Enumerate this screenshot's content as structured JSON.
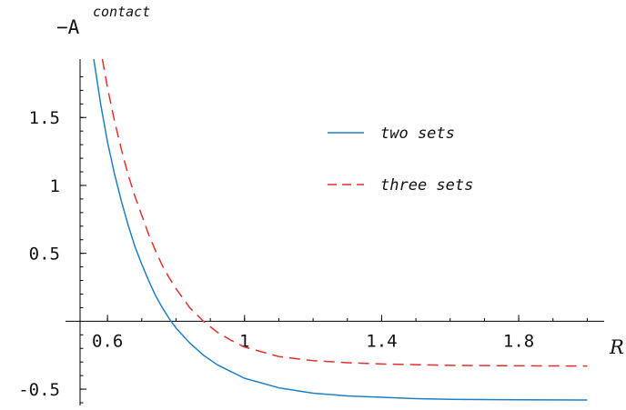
{
  "chart_data": {
    "type": "line",
    "ylabel": "−A",
    "ylabel_superscript": "contact",
    "xlabel": "R",
    "xlim": [
      0.52,
      2.06
    ],
    "ylim": [
      -0.62,
      1.93
    ],
    "x_ticks": [
      0.6,
      1.0,
      1.4,
      1.8
    ],
    "x_tick_labels": [
      "0.6",
      "1",
      "1.4",
      "1.8"
    ],
    "y_ticks": [
      -0.5,
      0.5,
      1.0,
      1.5
    ],
    "y_tick_labels": [
      "-0.5",
      "0.5",
      "1",
      "1.5"
    ],
    "grid": false,
    "legend_position": "upper-right",
    "series": [
      {
        "name": "two sets",
        "color": "#1f7fc4",
        "dash": "solid",
        "x": [
          0.56,
          0.58,
          0.6,
          0.62,
          0.64,
          0.66,
          0.68,
          0.7,
          0.72,
          0.74,
          0.76,
          0.78,
          0.8,
          0.84,
          0.88,
          0.92,
          0.96,
          1.0,
          1.1,
          1.2,
          1.3,
          1.4,
          1.5,
          1.6,
          1.8,
          2.0
        ],
        "values": [
          1.93,
          1.6,
          1.32,
          1.09,
          0.89,
          0.71,
          0.55,
          0.42,
          0.3,
          0.19,
          0.1,
          0.02,
          -0.05,
          -0.16,
          -0.25,
          -0.32,
          -0.37,
          -0.42,
          -0.49,
          -0.53,
          -0.55,
          -0.56,
          -0.57,
          -0.575,
          -0.578,
          -0.58
        ]
      },
      {
        "name": "three sets",
        "color": "#e03030",
        "dash": "dashed",
        "x": [
          0.585,
          0.6,
          0.62,
          0.64,
          0.66,
          0.68,
          0.7,
          0.72,
          0.74,
          0.76,
          0.78,
          0.8,
          0.84,
          0.88,
          0.92,
          0.96,
          1.0,
          1.1,
          1.2,
          1.3,
          1.4,
          1.5,
          1.6,
          1.8,
          2.0
        ],
        "values": [
          1.93,
          1.72,
          1.48,
          1.27,
          1.08,
          0.92,
          0.78,
          0.64,
          0.52,
          0.41,
          0.32,
          0.24,
          0.1,
          0.0,
          -0.08,
          -0.14,
          -0.19,
          -0.26,
          -0.29,
          -0.305,
          -0.315,
          -0.32,
          -0.325,
          -0.328,
          -0.33
        ]
      }
    ]
  }
}
